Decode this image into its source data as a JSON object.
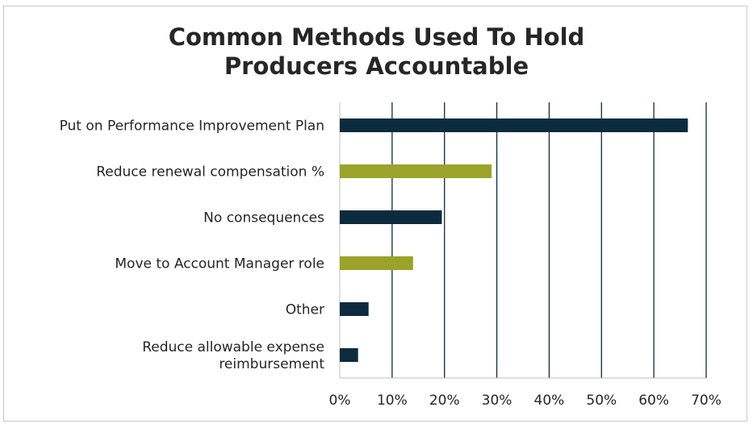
{
  "chart_data": {
    "type": "bar",
    "orientation": "horizontal",
    "title": [
      "Common Methods Used To Hold",
      "Producers Accountable"
    ],
    "categories": [
      [
        "Put on Performance Improvement Plan"
      ],
      [
        "Reduce renewal compensation %"
      ],
      [
        "No consequences"
      ],
      [
        "Move to Account Manager role"
      ],
      [
        "Other"
      ],
      [
        "Reduce allowable expense",
        "reimbursement"
      ]
    ],
    "values": [
      66.5,
      29,
      19.5,
      14,
      5.5,
      3.5
    ],
    "bar_colors": [
      "#0d2b3e",
      "#9ba32a",
      "#0d2b3e",
      "#9ba32a",
      "#0d2b3e",
      "#0d2b3e"
    ],
    "xlim": [
      0,
      70
    ],
    "xticks": [
      0,
      10,
      20,
      30,
      40,
      50,
      60,
      70
    ],
    "xtick_labels": [
      "0%",
      "10%",
      "20%",
      "30%",
      "40%",
      "50%",
      "60%",
      "70%"
    ],
    "grid": true,
    "legend": "none",
    "xlabel": "",
    "ylabel": ""
  }
}
